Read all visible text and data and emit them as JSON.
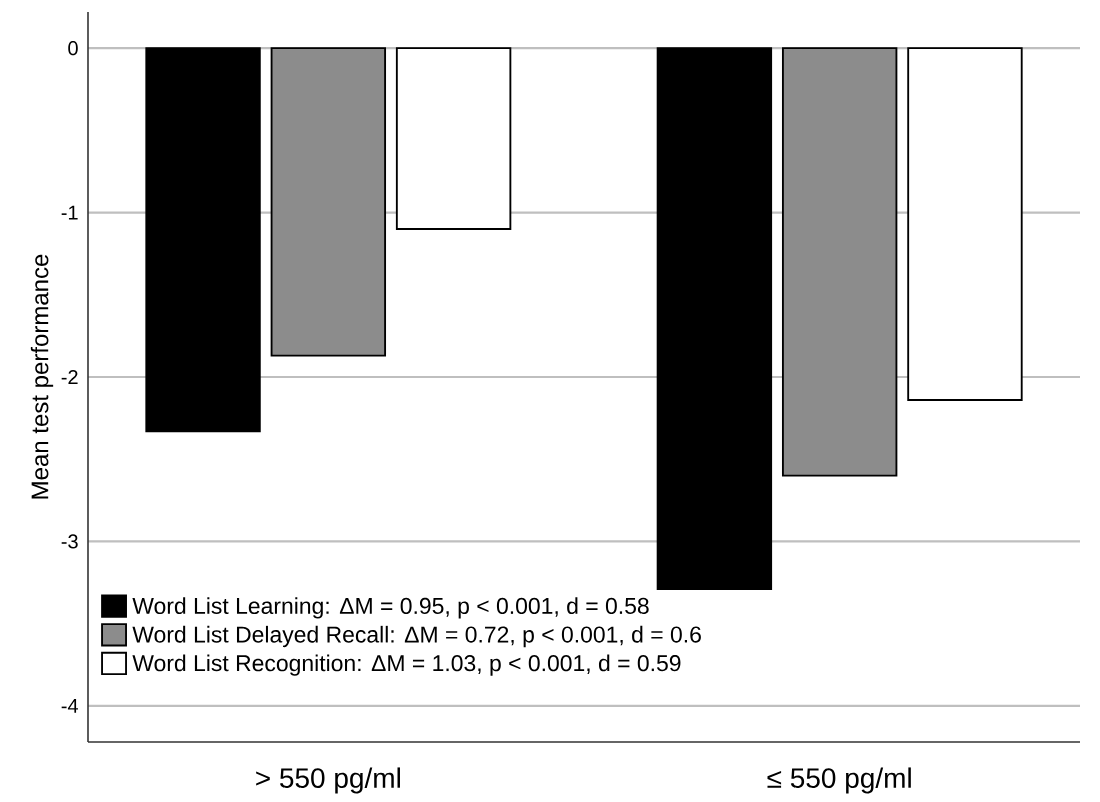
{
  "chart_data": {
    "type": "bar",
    "ylabel": "Mean test performance",
    "categories": [
      "> 550 pg/ml",
      "≤ 550 pg/ml"
    ],
    "series": [
      {
        "name": "Word List Learning: ΔM = 0.95, p < 0.001, d = 0.58",
        "color": "#000000",
        "values": [
          -2.33,
          -3.29
        ]
      },
      {
        "name": "Word List Delayed Recall: ΔM = 0.72, p < 0.001, d = 0.6",
        "color": "#8c8c8c",
        "values": [
          -1.87,
          -2.6
        ]
      },
      {
        "name": "Word List Recognition: ΔM = 1.03, p < 0.001, d = 0.59",
        "color": "#ffffff",
        "values": [
          -1.1,
          -2.14
        ]
      }
    ],
    "ylim": [
      -4.22,
      0.22
    ],
    "yticks": [
      -4,
      -3,
      -2,
      -1,
      0
    ],
    "grid": "y",
    "legend": "bottom left"
  }
}
